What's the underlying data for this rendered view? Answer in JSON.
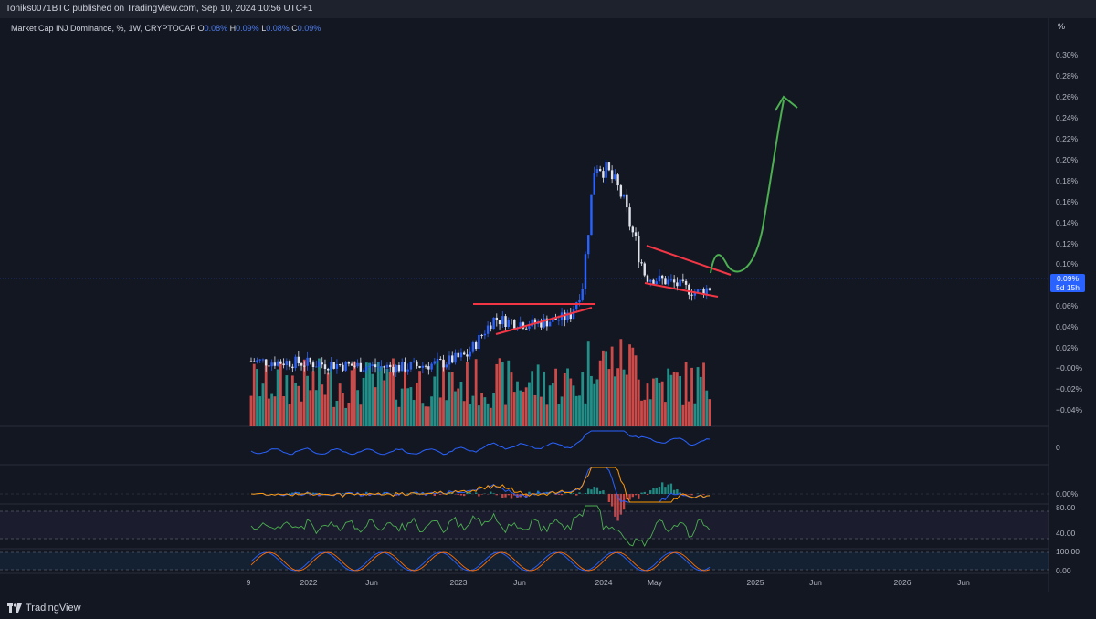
{
  "header": {
    "publisher_line": "Toniks0071BTC published on TradingView.com, Sep 10, 2024 10:56 UTC+1"
  },
  "legend": {
    "title": "Market Cap INJ Dominance, %, 1W, CRYPTOCAP",
    "o_label": "O",
    "o_value": "0.08%",
    "h_label": "H",
    "h_value": "0.09%",
    "l_label": "L",
    "l_value": "0.08%",
    "c_label": "C",
    "c_value": "0.09%"
  },
  "scale_button": "%",
  "price_axis": {
    "labels": [
      "0.30%",
      "0.28%",
      "0.26%",
      "0.24%",
      "0.22%",
      "0.20%",
      "0.18%",
      "0.16%",
      "0.14%",
      "0.12%",
      "0.10%",
      "0.06%",
      "0.04%",
      "0.02%",
      "−0.00%",
      "−0.02%",
      "−0.04%"
    ]
  },
  "current_price": {
    "value": "0.09%",
    "countdown": "5d 15h"
  },
  "pane_labels": {
    "pane1": "0",
    "pane2": "0.00%",
    "pane3_top": "80.00",
    "pane3_mid": "40.00",
    "pane4_top": "100.00",
    "pane4_bottom": "0.00"
  },
  "time_axis": {
    "labels": [
      "9",
      "2022",
      "Jun",
      "2023",
      "Jun",
      "2024",
      "May",
      "2025",
      "Jun",
      "2026",
      "Jun"
    ]
  },
  "footer": {
    "brand": "TradingView"
  },
  "colors": {
    "background": "#131722",
    "up_candle": "#2962ff",
    "down_candle": "#e0e3eb",
    "pattern_lines": "#f23645",
    "projection_arrow": "#4caf50",
    "volume_up": "#26a69a",
    "volume_down": "#ef5350",
    "price_tag": "#2962ff"
  },
  "chart_data": {
    "type": "candlestick",
    "title": "Market Cap INJ Dominance, %, 1W, CRYPTOCAP",
    "y_unit": "%",
    "ylim": [
      -0.05,
      0.32
    ],
    "x_range": [
      "2021-09",
      "2026-08"
    ],
    "close_series_approx": [
      {
        "date": "2021-09",
        "close": 0.02
      },
      {
        "date": "2021-12",
        "close": 0.019
      },
      {
        "date": "2022-03",
        "close": 0.017
      },
      {
        "date": "2022-06",
        "close": 0.015
      },
      {
        "date": "2022-09",
        "close": 0.014
      },
      {
        "date": "2022-12",
        "close": 0.018
      },
      {
        "date": "2023-02",
        "close": 0.026
      },
      {
        "date": "2023-04",
        "close": 0.06
      },
      {
        "date": "2023-07",
        "close": 0.055
      },
      {
        "date": "2023-10",
        "close": 0.062
      },
      {
        "date": "2023-11",
        "close": 0.09
      },
      {
        "date": "2023-12",
        "close": 0.21
      },
      {
        "date": "2024-01",
        "close": 0.2
      },
      {
        "date": "2024-02",
        "close": 0.18
      },
      {
        "date": "2024-03",
        "close": 0.14
      },
      {
        "date": "2024-04",
        "close": 0.1
      },
      {
        "date": "2024-06",
        "close": 0.095
      },
      {
        "date": "2024-08",
        "close": 0.085
      },
      {
        "date": "2024-09",
        "close": 0.09
      }
    ],
    "annotations": [
      "ascending triangle 2023",
      "falling wedge 2024",
      "projected breakout arrow"
    ]
  }
}
